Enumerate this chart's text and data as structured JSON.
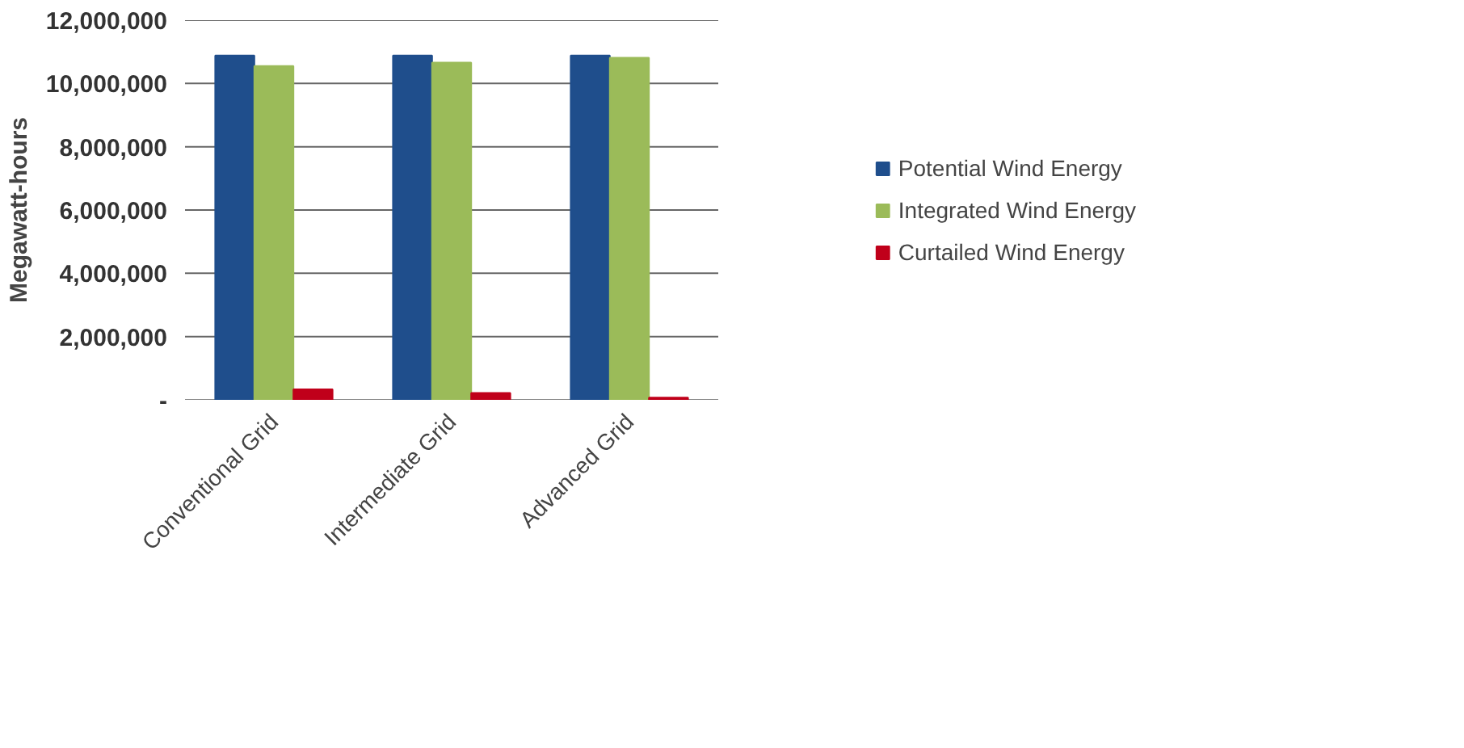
{
  "chart_data": {
    "type": "bar",
    "ylabel": "Megawatt-hours",
    "categories": [
      "Conventional Grid",
      "Intermediate Grid",
      "Advanced Grid"
    ],
    "series": [
      {
        "name": "Potential Wind Energy",
        "color": "#1f4e8c",
        "values": [
          10880000,
          10880000,
          10880000
        ]
      },
      {
        "name": "Integrated Wind Energy",
        "color": "#9bbb59",
        "values": [
          10550000,
          10660000,
          10810000
        ]
      },
      {
        "name": "Curtailed Wind Energy",
        "color": "#c0001a",
        "values": [
          330000,
          220000,
          70000
        ]
      }
    ],
    "ylim": [
      0,
      12000000
    ],
    "yticks": [
      {
        "value": 0,
        "label": "-"
      },
      {
        "value": 2000000,
        "label": "2,000,000"
      },
      {
        "value": 4000000,
        "label": "4,000,000"
      },
      {
        "value": 6000000,
        "label": "6,000,000"
      },
      {
        "value": 8000000,
        "label": "8,000,000"
      },
      {
        "value": 10000000,
        "label": "10,000,000"
      },
      {
        "value": 12000000,
        "label": "12,000,000"
      }
    ],
    "grid": "y",
    "legend": "right"
  }
}
